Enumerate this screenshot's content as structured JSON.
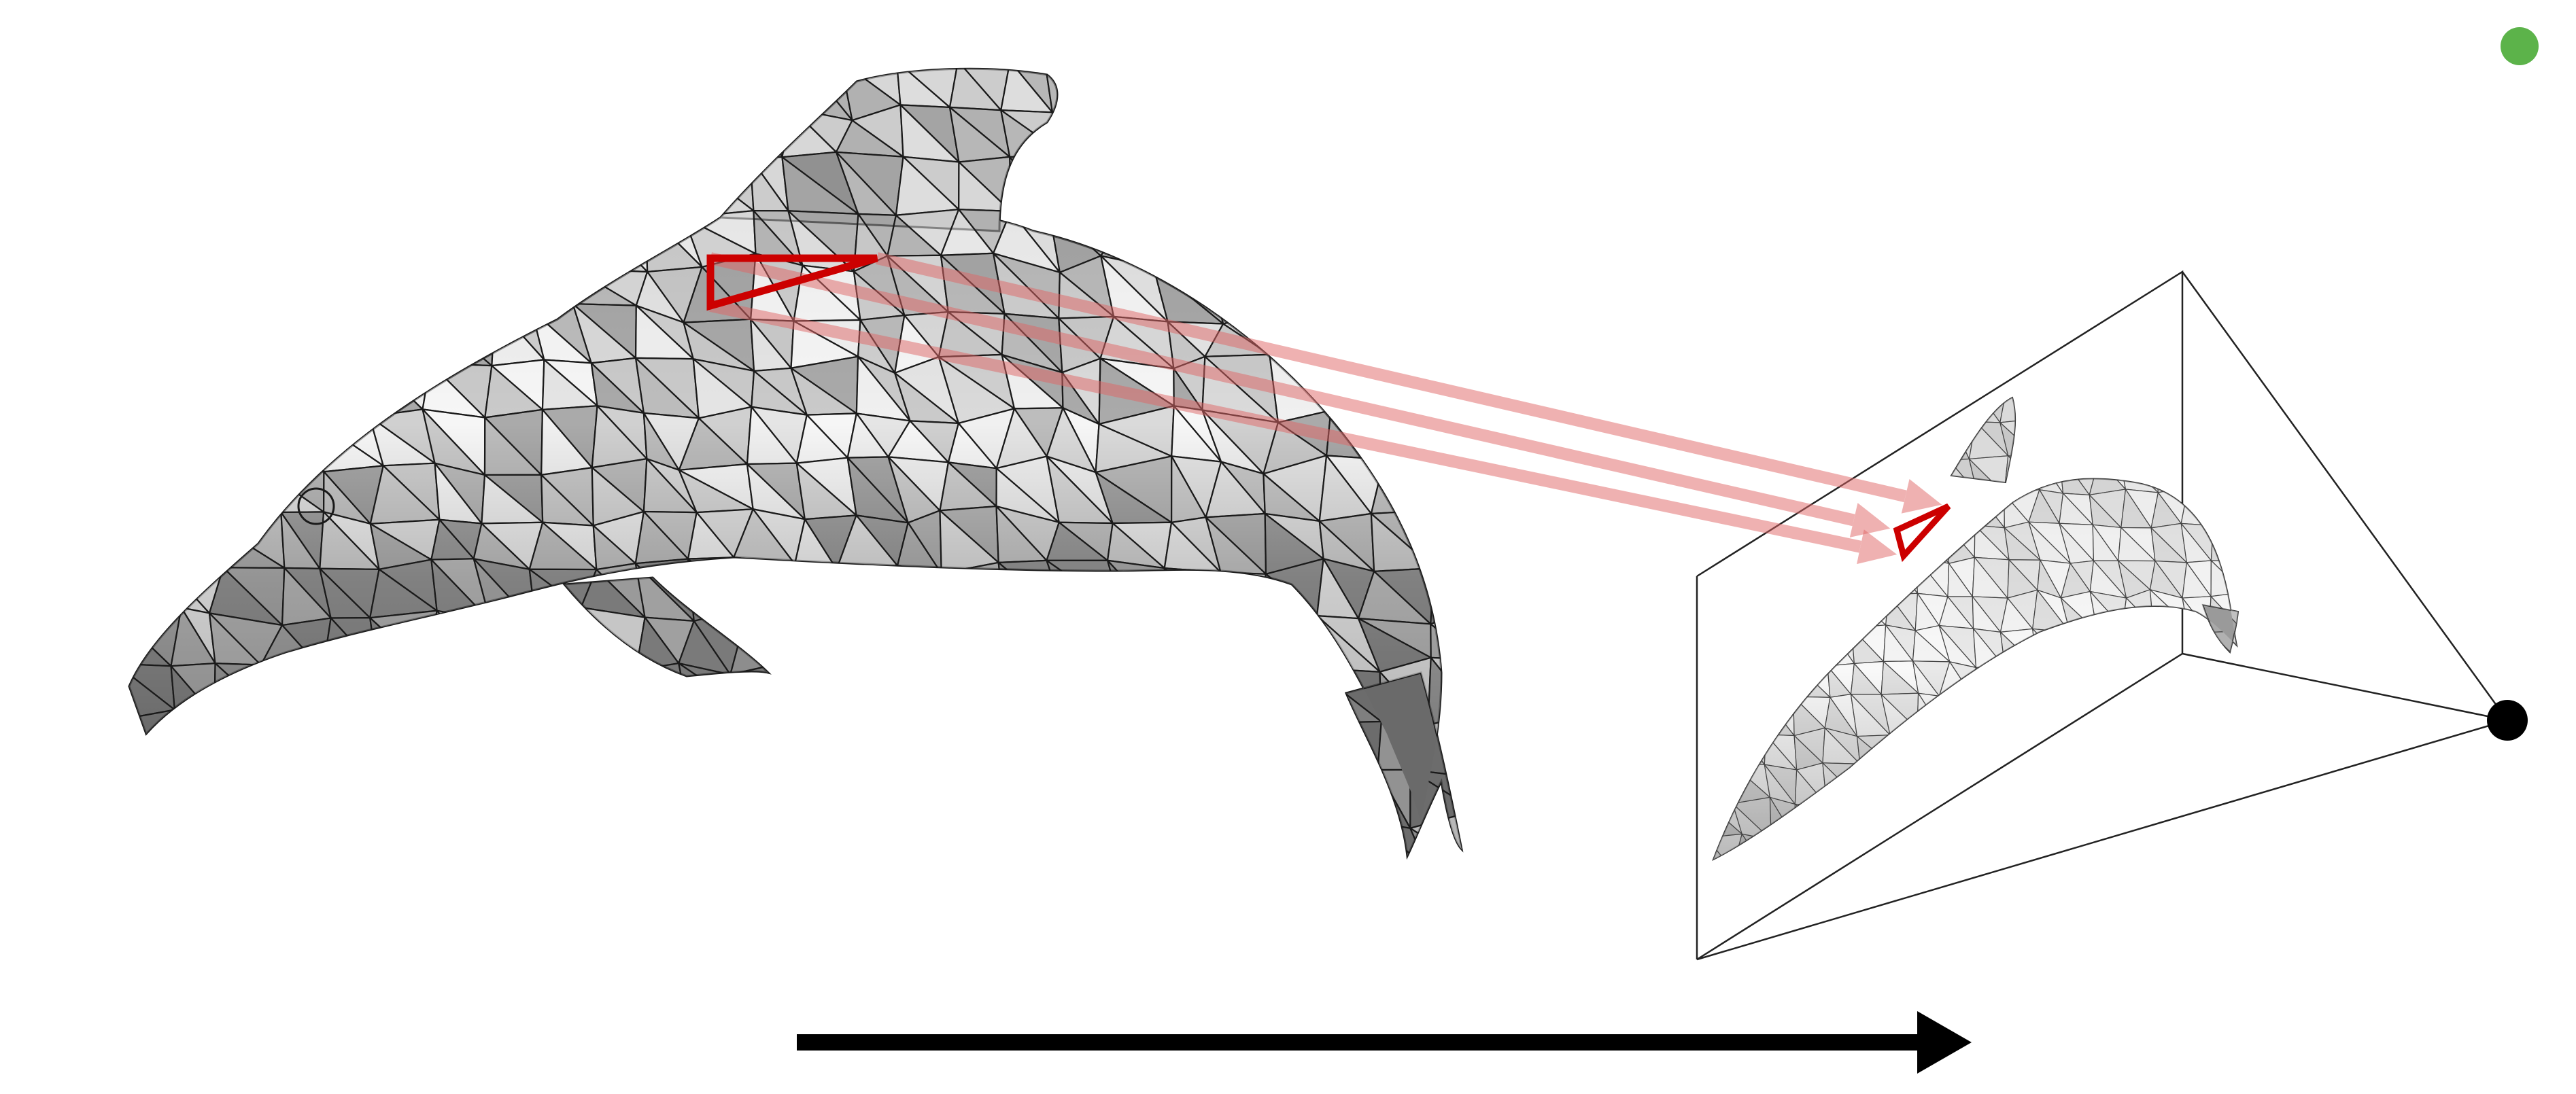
{
  "diagram": {
    "kind": "rasterization-pipeline",
    "nodes": [
      {
        "id": "mesh",
        "icon": "dolphin-triangle-mesh",
        "role": "3D triangle mesh model"
      },
      {
        "id": "view-frustum",
        "icon": "camera-frustum",
        "role": "perspective view volume"
      },
      {
        "id": "image-plane",
        "icon": "projected-dolphin-image",
        "role": "2D projected image"
      },
      {
        "id": "camera",
        "icon": "camera-center-dot",
        "role": "eye point"
      }
    ],
    "edges": [
      {
        "from": "mesh",
        "to": "image-plane",
        "style": "projection-ray",
        "count": 3
      },
      {
        "from": "mesh",
        "to": "image-plane",
        "style": "process-arrow",
        "count": 1
      }
    ],
    "highlight": {
      "shape": "triangle",
      "color": "#cc0000"
    }
  },
  "colors": {
    "highlight": "#cc0000",
    "ray": "#e06666",
    "mesh_dark": "#5a5a5a",
    "mesh_light": "#f2f2f2",
    "wire": "#1a1a1a",
    "arrow": "#000000",
    "status_dot": "#5cb34a",
    "camera_dot": "#000000"
  },
  "status_indicator": {
    "state": "active",
    "color_name": "green"
  }
}
